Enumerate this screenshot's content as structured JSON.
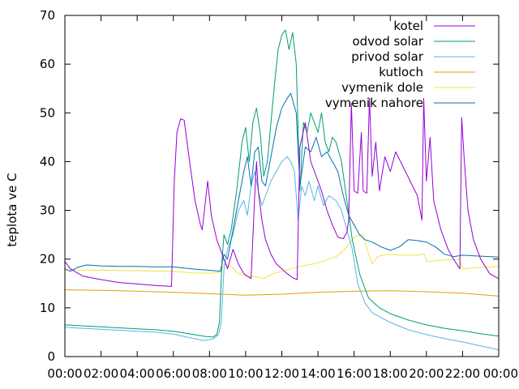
{
  "chart_data": {
    "type": "line",
    "title": "",
    "xlabel": "",
    "ylabel": "teplota ve C",
    "ylim": [
      0,
      70
    ],
    "xlim": [
      0,
      24
    ],
    "yticks": [
      0,
      10,
      20,
      30,
      40,
      50,
      60,
      70
    ],
    "xticks": [
      {
        "v": 0,
        "label": "00:00"
      },
      {
        "v": 2,
        "label": "02:00"
      },
      {
        "v": 4,
        "label": "04:00"
      },
      {
        "v": 6,
        "label": "06:00"
      },
      {
        "v": 8,
        "label": "08:00"
      },
      {
        "v": 10,
        "label": "10:00"
      },
      {
        "v": 12,
        "label": "12:00"
      },
      {
        "v": 14,
        "label": "14:00"
      },
      {
        "v": 16,
        "label": "16:00"
      },
      {
        "v": 18,
        "label": "18:00"
      },
      {
        "v": 20,
        "label": "20:00"
      },
      {
        "v": 22,
        "label": "22:00"
      },
      {
        "v": 24,
        "label": "00:00"
      }
    ],
    "legend_position": "top-right",
    "grid": false,
    "series": [
      {
        "name": "kotel",
        "color": "#9400d3",
        "points": [
          [
            0,
            19.5
          ],
          [
            0.3,
            18
          ],
          [
            1,
            16.5
          ],
          [
            2,
            15.8
          ],
          [
            3,
            15.2
          ],
          [
            4,
            14.9
          ],
          [
            5,
            14.6
          ],
          [
            5.9,
            14.4
          ],
          [
            6.05,
            36
          ],
          [
            6.2,
            46
          ],
          [
            6.4,
            48.8
          ],
          [
            6.6,
            48.5
          ],
          [
            6.9,
            40
          ],
          [
            7.2,
            32
          ],
          [
            7.5,
            27
          ],
          [
            7.6,
            26
          ],
          [
            7.9,
            36
          ],
          [
            8.1,
            29
          ],
          [
            8.4,
            24
          ],
          [
            8.8,
            20
          ],
          [
            9.0,
            18
          ],
          [
            9.3,
            22
          ],
          [
            9.6,
            19
          ],
          [
            9.9,
            17
          ],
          [
            10.3,
            16
          ],
          [
            10.5,
            33
          ],
          [
            10.6,
            40
          ],
          [
            10.7,
            34
          ],
          [
            10.9,
            28
          ],
          [
            11.1,
            24
          ],
          [
            11.4,
            21
          ],
          [
            11.7,
            19
          ],
          [
            12.0,
            18
          ],
          [
            12.3,
            17
          ],
          [
            12.6,
            16.2
          ],
          [
            12.85,
            15.8
          ],
          [
            13.0,
            43
          ],
          [
            13.3,
            48
          ],
          [
            13.6,
            40
          ],
          [
            13.9,
            37
          ],
          [
            14.2,
            34
          ],
          [
            14.5,
            30
          ],
          [
            14.8,
            27
          ],
          [
            15.1,
            24.5
          ],
          [
            15.4,
            24.2
          ],
          [
            15.6,
            25.5
          ],
          [
            15.7,
            28
          ],
          [
            15.85,
            52
          ],
          [
            16.0,
            34
          ],
          [
            16.2,
            33.5
          ],
          [
            16.4,
            46
          ],
          [
            16.5,
            34
          ],
          [
            16.7,
            33.5
          ],
          [
            16.85,
            53
          ],
          [
            17.0,
            37
          ],
          [
            17.2,
            44
          ],
          [
            17.4,
            34
          ],
          [
            17.7,
            41
          ],
          [
            18.0,
            38
          ],
          [
            18.3,
            42
          ],
          [
            18.7,
            39
          ],
          [
            19.1,
            36
          ],
          [
            19.5,
            33
          ],
          [
            19.75,
            28
          ],
          [
            19.85,
            53
          ],
          [
            20.0,
            36
          ],
          [
            20.2,
            45
          ],
          [
            20.4,
            32
          ],
          [
            20.8,
            26
          ],
          [
            21.2,
            22
          ],
          [
            21.5,
            20
          ],
          [
            21.85,
            18
          ],
          [
            21.95,
            49
          ],
          [
            22.1,
            40
          ],
          [
            22.3,
            30
          ],
          [
            22.6,
            24
          ],
          [
            23.0,
            20
          ],
          [
            23.5,
            17
          ],
          [
            24,
            16
          ]
        ]
      },
      {
        "name": "odvod solar",
        "color": "#009e73",
        "points": [
          [
            0,
            6.5
          ],
          [
            1,
            6.3
          ],
          [
            2,
            6.1
          ],
          [
            3,
            5.9
          ],
          [
            4,
            5.7
          ],
          [
            5,
            5.5
          ],
          [
            6,
            5.2
          ],
          [
            7,
            4.6
          ],
          [
            7.8,
            4.1
          ],
          [
            8.2,
            4.0
          ],
          [
            8.4,
            4.5
          ],
          [
            8.55,
            7
          ],
          [
            8.7,
            20
          ],
          [
            8.8,
            25
          ],
          [
            9.0,
            23
          ],
          [
            9.2,
            26
          ],
          [
            9.5,
            34
          ],
          [
            9.8,
            44
          ],
          [
            10.0,
            47
          ],
          [
            10.2,
            40
          ],
          [
            10.4,
            48
          ],
          [
            10.6,
            51
          ],
          [
            10.8,
            46
          ],
          [
            11.0,
            37
          ],
          [
            11.2,
            40
          ],
          [
            11.4,
            48
          ],
          [
            11.6,
            56
          ],
          [
            11.8,
            63
          ],
          [
            12.0,
            66
          ],
          [
            12.2,
            67
          ],
          [
            12.4,
            63
          ],
          [
            12.6,
            66.5
          ],
          [
            12.8,
            60
          ],
          [
            13.0,
            34
          ],
          [
            13.2,
            48
          ],
          [
            13.4,
            46
          ],
          [
            13.6,
            50
          ],
          [
            13.8,
            48
          ],
          [
            14.0,
            46
          ],
          [
            14.2,
            50
          ],
          [
            14.4,
            44
          ],
          [
            14.6,
            42
          ],
          [
            14.8,
            45
          ],
          [
            15.0,
            44
          ],
          [
            15.3,
            40
          ],
          [
            15.6,
            32
          ],
          [
            15.9,
            24
          ],
          [
            16.3,
            17
          ],
          [
            16.8,
            12
          ],
          [
            17.4,
            10
          ],
          [
            18,
            8.8
          ],
          [
            19,
            7.5
          ],
          [
            20,
            6.5
          ],
          [
            21,
            5.8
          ],
          [
            22,
            5.3
          ],
          [
            23,
            4.7
          ],
          [
            24,
            4.2
          ]
        ]
      },
      {
        "name": "privod solar",
        "color": "#56b4e9",
        "points": [
          [
            0,
            6
          ],
          [
            1,
            5.8
          ],
          [
            2,
            5.6
          ],
          [
            3,
            5.4
          ],
          [
            4,
            5.2
          ],
          [
            5,
            5.0
          ],
          [
            6,
            4.6
          ],
          [
            7,
            3.8
          ],
          [
            7.7,
            3.3
          ],
          [
            8.2,
            3.6
          ],
          [
            8.5,
            4.5
          ],
          [
            8.65,
            7
          ],
          [
            8.8,
            18
          ],
          [
            9.0,
            22
          ],
          [
            9.3,
            25
          ],
          [
            9.6,
            30
          ],
          [
            9.9,
            32
          ],
          [
            10.1,
            29
          ],
          [
            10.3,
            35
          ],
          [
            10.5,
            38
          ],
          [
            10.7,
            34
          ],
          [
            10.9,
            31
          ],
          [
            11.1,
            33
          ],
          [
            11.4,
            36
          ],
          [
            11.7,
            38
          ],
          [
            12.0,
            40
          ],
          [
            12.3,
            41
          ],
          [
            12.5,
            40
          ],
          [
            12.7,
            38
          ],
          [
            12.9,
            28
          ],
          [
            13.1,
            35
          ],
          [
            13.3,
            33
          ],
          [
            13.5,
            36
          ],
          [
            13.8,
            32
          ],
          [
            14.0,
            35
          ],
          [
            14.3,
            31
          ],
          [
            14.6,
            33
          ],
          [
            15.0,
            32
          ],
          [
            15.3,
            30
          ],
          [
            15.6,
            26
          ],
          [
            15.9,
            22
          ],
          [
            16.2,
            15
          ],
          [
            16.6,
            11
          ],
          [
            17,
            9
          ],
          [
            18,
            7
          ],
          [
            19,
            5.5
          ],
          [
            20,
            4.5
          ],
          [
            21,
            3.7
          ],
          [
            22,
            3.0
          ],
          [
            23,
            2.2
          ],
          [
            24,
            1.4
          ]
        ]
      },
      {
        "name": "kutloch",
        "color": "#e69f00",
        "points": [
          [
            0,
            13.7
          ],
          [
            2,
            13.6
          ],
          [
            4,
            13.4
          ],
          [
            6,
            13.2
          ],
          [
            8,
            12.9
          ],
          [
            10,
            12.6
          ],
          [
            12,
            12.8
          ],
          [
            14,
            13.2
          ],
          [
            16,
            13.4
          ],
          [
            18,
            13.5
          ],
          [
            20,
            13.3
          ],
          [
            22,
            13.0
          ],
          [
            24,
            12.4
          ]
        ]
      },
      {
        "name": "vymenik dole",
        "color": "#f0e442",
        "points": [
          [
            0,
            17.8
          ],
          [
            2,
            17.7
          ],
          [
            4,
            17.6
          ],
          [
            6,
            17.5
          ],
          [
            7,
            17.2
          ],
          [
            8,
            17.1
          ],
          [
            8.6,
            17.3
          ],
          [
            8.8,
            19
          ],
          [
            9.2,
            18.5
          ],
          [
            9.6,
            17
          ],
          [
            10,
            16.5
          ],
          [
            10.5,
            16.4
          ],
          [
            11,
            16.0
          ],
          [
            11.5,
            17.0
          ],
          [
            12,
            17.5
          ],
          [
            13,
            18.5
          ],
          [
            14,
            19.2
          ],
          [
            15,
            20.5
          ],
          [
            15.5,
            22
          ],
          [
            16,
            24.5
          ],
          [
            16.5,
            25
          ],
          [
            16.8,
            21
          ],
          [
            17.0,
            19
          ],
          [
            17.3,
            20.5
          ],
          [
            17.8,
            21
          ],
          [
            18.5,
            20.8
          ],
          [
            19.5,
            20.8
          ],
          [
            19.9,
            21
          ],
          [
            20.0,
            19.5
          ],
          [
            21,
            19.8
          ],
          [
            21.8,
            20
          ],
          [
            22.0,
            18
          ],
          [
            23,
            18.3
          ],
          [
            24,
            18.5
          ]
        ]
      },
      {
        "name": "vymenik nahore",
        "color": "#0072b2",
        "points": [
          [
            0,
            18
          ],
          [
            0.3,
            17.5
          ],
          [
            0.7,
            18.3
          ],
          [
            1.2,
            18.8
          ],
          [
            2,
            18.6
          ],
          [
            3,
            18.5
          ],
          [
            4,
            18.5
          ],
          [
            5,
            18.4
          ],
          [
            6,
            18.4
          ],
          [
            7,
            18.0
          ],
          [
            8,
            17.7
          ],
          [
            8.6,
            17.5
          ],
          [
            8.8,
            21
          ],
          [
            9.0,
            20
          ],
          [
            9.3,
            26
          ],
          [
            9.6,
            32
          ],
          [
            9.9,
            38
          ],
          [
            10.1,
            41
          ],
          [
            10.3,
            35
          ],
          [
            10.5,
            42
          ],
          [
            10.7,
            43
          ],
          [
            10.9,
            36
          ],
          [
            11.1,
            35
          ],
          [
            11.4,
            41
          ],
          [
            11.7,
            47
          ],
          [
            12.0,
            51
          ],
          [
            12.3,
            53
          ],
          [
            12.5,
            54
          ],
          [
            12.8,
            50
          ],
          [
            13.0,
            35
          ],
          [
            13.3,
            43
          ],
          [
            13.6,
            42
          ],
          [
            13.9,
            45
          ],
          [
            14.2,
            41
          ],
          [
            14.5,
            42
          ],
          [
            14.8,
            40
          ],
          [
            15.1,
            38
          ],
          [
            15.4,
            33
          ],
          [
            15.7,
            29
          ],
          [
            16.0,
            27
          ],
          [
            16.3,
            25
          ],
          [
            16.6,
            24
          ],
          [
            17,
            23.5
          ],
          [
            17.5,
            22.5
          ],
          [
            18,
            21.8
          ],
          [
            18.5,
            22.5
          ],
          [
            19,
            24
          ],
          [
            19.5,
            23.8
          ],
          [
            20,
            23.5
          ],
          [
            20.5,
            22.5
          ],
          [
            21,
            21
          ],
          [
            21.5,
            20.5
          ],
          [
            22,
            20.8
          ],
          [
            23,
            20.6
          ],
          [
            24,
            20.4
          ]
        ]
      }
    ]
  }
}
